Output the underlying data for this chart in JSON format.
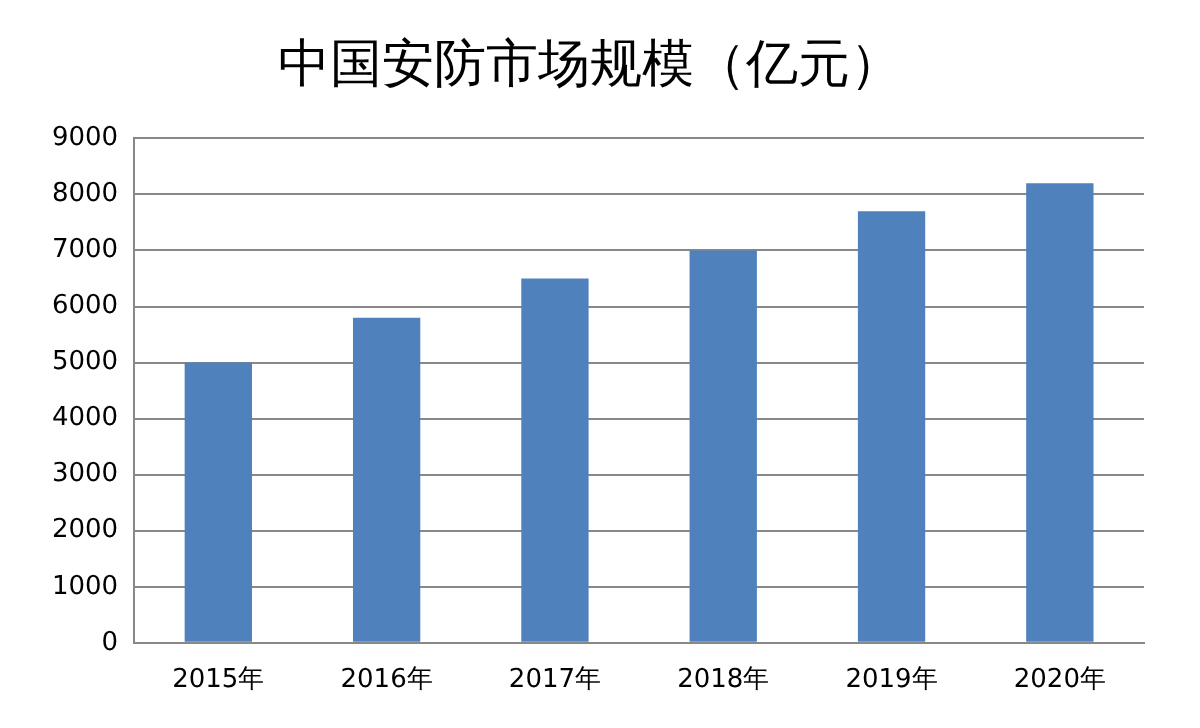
{
  "chart_data": {
    "type": "bar",
    "title": "中国安防市场规模（亿元）",
    "categories": [
      "2015年",
      "2016年",
      "2017年",
      "2018年",
      "2019年",
      "2020年"
    ],
    "values": [
      5000,
      5800,
      6500,
      7000,
      7700,
      8200
    ],
    "color": "#4f81bd",
    "ylim": [
      0,
      9000
    ],
    "yticks": [
      0,
      1000,
      2000,
      3000,
      4000,
      5000,
      6000,
      7000,
      8000,
      9000
    ],
    "grid": "y",
    "legend": false
  }
}
